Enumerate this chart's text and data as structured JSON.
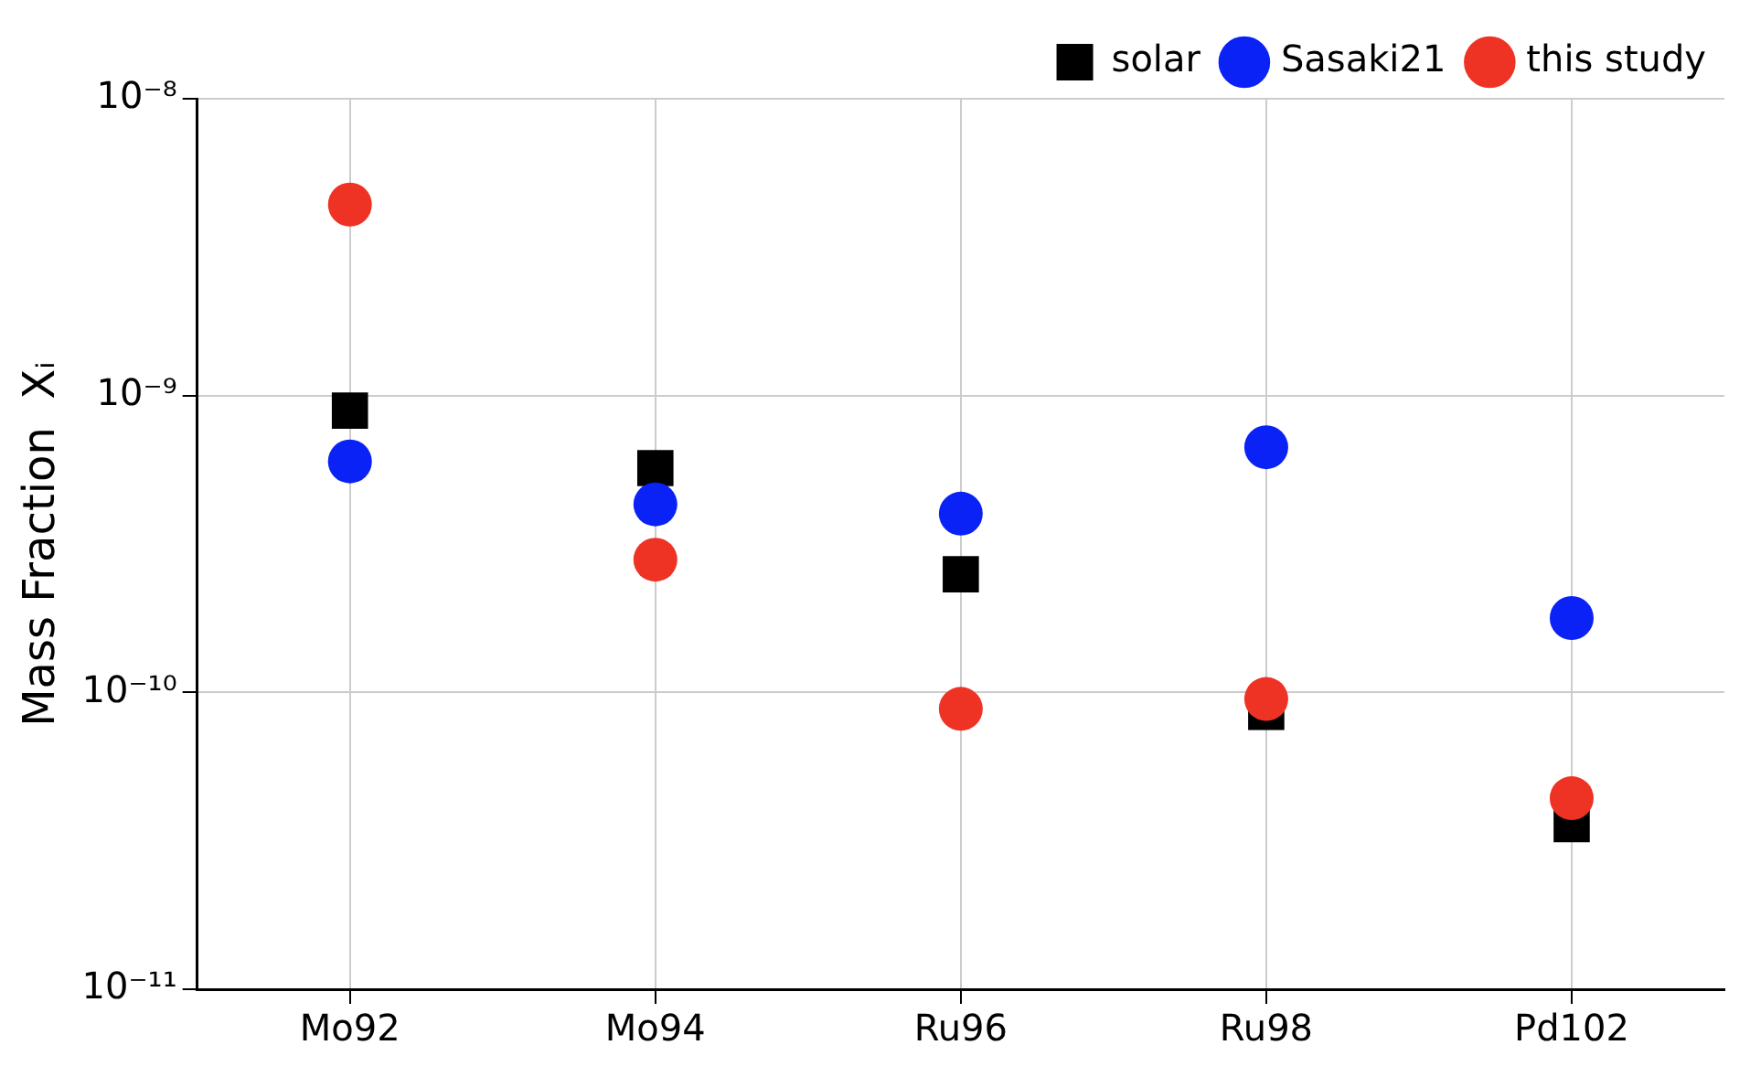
{
  "chart_data": {
    "type": "scatter",
    "ylabel": "Mass Fraction  Xᵢ",
    "categories": [
      "Mo92",
      "Mo94",
      "Ru96",
      "Ru98",
      "Pd102"
    ],
    "series": [
      {
        "name": "solar",
        "color": "#000000",
        "marker": "square",
        "values": [
          8.9e-10,
          5.7e-10,
          2.5e-10,
          8.6e-11,
          3.6e-11
        ]
      },
      {
        "name": "Sasaki21",
        "color": "#0a22f5",
        "marker": "circle",
        "values": [
          6e-10,
          4.3e-10,
          4e-10,
          6.7e-10,
          1.78e-10
        ]
      },
      {
        "name": "this study",
        "color": "#ee3224",
        "marker": "circle",
        "values": [
          4.4e-09,
          2.8e-10,
          8.8e-11,
          9.5e-11,
          4.4e-11
        ]
      }
    ],
    "log": "y",
    "ylim": [
      1e-11,
      1e-08
    ],
    "yticks": [
      {
        "value": 1e-11,
        "label": "10⁻¹¹"
      },
      {
        "value": 1e-10,
        "label": "10⁻¹⁰"
      },
      {
        "value": 1e-09,
        "label": "10⁻⁹"
      },
      {
        "value": 1e-08,
        "label": "10⁻⁸"
      }
    ],
    "grid": true,
    "legend": "top right"
  }
}
